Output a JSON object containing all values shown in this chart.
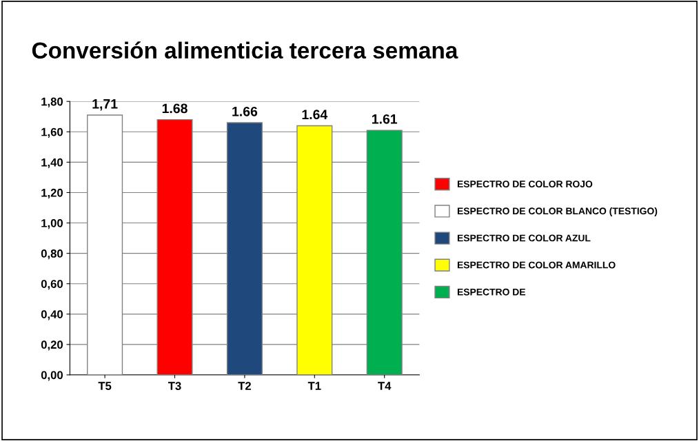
{
  "chart_data": {
    "type": "bar",
    "title": "Conversión alimenticia tercera semana",
    "categories": [
      "T5",
      "T3",
      "T2",
      "T1",
      "T4"
    ],
    "series": [
      {
        "name": "ESPECTRO DE COLOR ROJO",
        "color": "#ff0000",
        "values": [
          null,
          1.68,
          null,
          null,
          null
        ],
        "value_labels": [
          null,
          "1.68",
          null,
          null,
          null
        ]
      },
      {
        "name": "ESPECTRO DE COLOR BLANCO (TESTIGO)",
        "color": "#ffffff",
        "values": [
          1.71,
          null,
          null,
          null,
          null
        ],
        "value_labels": [
          "1,71",
          null,
          null,
          null,
          null
        ]
      },
      {
        "name": "ESPECTRO DE COLOR AZUL",
        "color": "#1f497d",
        "values": [
          null,
          null,
          1.66,
          null,
          null
        ],
        "value_labels": [
          null,
          null,
          "1.66",
          null,
          null
        ]
      },
      {
        "name": "ESPECTRO DE COLOR AMARILLO",
        "color": "#ffff00",
        "values": [
          null,
          null,
          null,
          1.64,
          null
        ],
        "value_labels": [
          null,
          null,
          null,
          "1.64",
          null
        ]
      },
      {
        "name": "ESPECTRO DE",
        "color": "#00b050",
        "values": [
          null,
          null,
          null,
          null,
          1.61
        ],
        "value_labels": [
          null,
          null,
          null,
          null,
          "1.61"
        ]
      }
    ],
    "ylim": [
      0,
      1.8
    ],
    "yticks": [
      {
        "value": 0,
        "label": "0,00"
      },
      {
        "value": 0.2,
        "label": "0,20"
      },
      {
        "value": 0.4,
        "label": "0,40"
      },
      {
        "value": 0.6,
        "label": "0,60"
      },
      {
        "value": 0.8,
        "label": "0,80"
      },
      {
        "value": 1.0,
        "label": "1,00"
      },
      {
        "value": 1.2,
        "label": "1,20"
      },
      {
        "value": 1.4,
        "label": "1,40"
      },
      {
        "value": 1.6,
        "label": "1,60"
      },
      {
        "value": 1.8,
        "label": "1,80"
      }
    ],
    "grid": "y",
    "legend": "right"
  }
}
